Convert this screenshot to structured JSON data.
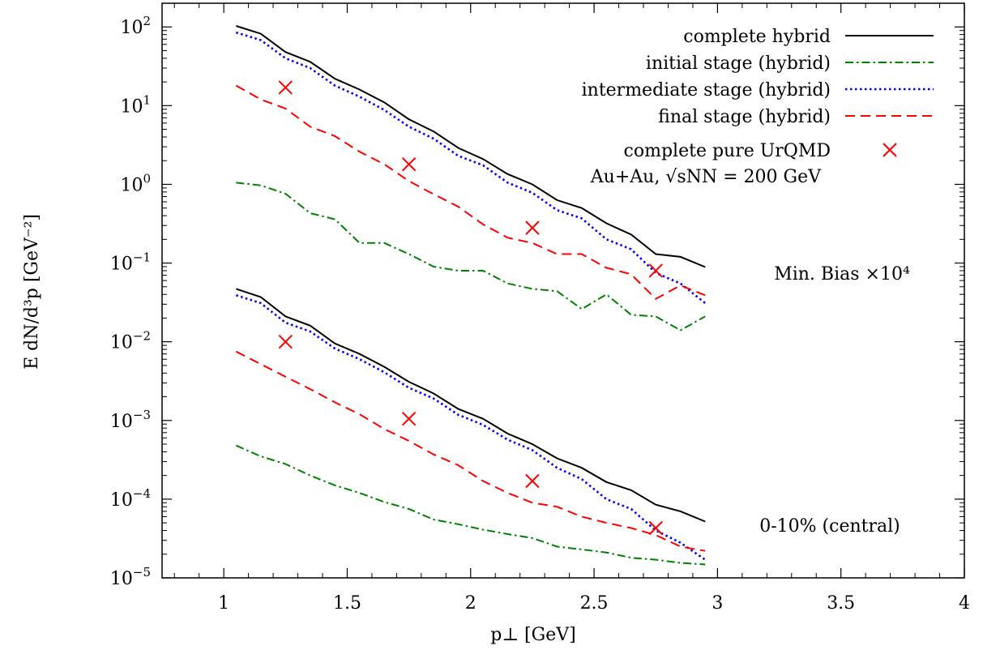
{
  "chart_data": {
    "type": "line",
    "xlabel": "p⊥ [GeV]",
    "ylabel": "E dN/d³p [GeV⁻²]",
    "xlim": [
      0.75,
      4.0
    ],
    "ylim": [
      1e-05,
      200
    ],
    "yscale": "log",
    "grid": false,
    "legend_position": "top-right",
    "x_ticks": [
      1,
      1.5,
      2,
      2.5,
      3,
      3.5,
      4
    ],
    "x_tick_labels": [
      "1",
      "1.5",
      "2",
      "2.5",
      "3",
      "3.5",
      "4"
    ],
    "y_ticks": [
      {
        "base": "10",
        "exp": "2",
        "value": 100
      },
      {
        "base": "10",
        "exp": "1",
        "value": 10
      },
      {
        "base": "10",
        "exp": "0",
        "value": 1
      },
      {
        "base": "10",
        "exp": "−1",
        "value": 0.1
      },
      {
        "base": "10",
        "exp": "−2",
        "value": 0.01
      },
      {
        "base": "10",
        "exp": "−3",
        "value": 0.001
      },
      {
        "base": "10",
        "exp": "−4",
        "value": 0.0001
      },
      {
        "base": "10",
        "exp": "−5",
        "value": 1e-05
      }
    ],
    "legend": [
      {
        "label": "complete hybrid",
        "color": "#000000",
        "style": "solid"
      },
      {
        "label": "initial stage (hybrid)",
        "color": "#008000",
        "style": "dashdot"
      },
      {
        "label": "intermediate stage (hybrid)",
        "color": "#0000ff",
        "style": "dotted"
      },
      {
        "label": "final stage (hybrid)",
        "color": "#ff0000",
        "style": "dashed"
      },
      {
        "label": "complete pure UrQMD",
        "color": "#ff0000",
        "style": "cross"
      }
    ],
    "system_label": "Au+Au, √sNN = 200 GeV",
    "annotations": [
      "Min. Bias ×10⁴",
      "0-10% (central)"
    ],
    "x": [
      1.05,
      1.15,
      1.25,
      1.35,
      1.45,
      1.55,
      1.65,
      1.75,
      1.85,
      1.95,
      2.05,
      2.15,
      2.25,
      2.35,
      2.45,
      2.55,
      2.65,
      2.75,
      2.85,
      2.95
    ],
    "series": [
      {
        "name": "complete hybrid",
        "group": "Min. Bias ×10⁴",
        "color": "#000000",
        "style": "solid",
        "values": [
          103,
          82,
          48,
          36,
          22,
          16,
          11,
          6.7,
          4.7,
          2.9,
          2.1,
          1.35,
          1.0,
          0.63,
          0.5,
          0.32,
          0.23,
          0.13,
          0.12,
          0.089
        ]
      },
      {
        "name": "initial stage (hybrid)",
        "group": "Min. Bias ×10⁴",
        "color": "#008000",
        "style": "dashdot",
        "values": [
          1.05,
          0.97,
          0.76,
          0.43,
          0.36,
          0.18,
          0.18,
          0.13,
          0.09,
          0.08,
          0.08,
          0.055,
          0.047,
          0.044,
          0.026,
          0.04,
          0.022,
          0.021,
          0.014,
          0.021
        ]
      },
      {
        "name": "intermediate stage (hybrid)",
        "group": "Min. Bias ×10⁴",
        "color": "#0000ff",
        "style": "dotted",
        "values": [
          85,
          68,
          40,
          30,
          18,
          13,
          8.8,
          5.4,
          3.8,
          2.3,
          1.75,
          1.05,
          0.78,
          0.47,
          0.37,
          0.2,
          0.15,
          0.075,
          0.055,
          0.031
        ]
      },
      {
        "name": "final stage (hybrid)",
        "group": "Min. Bias ×10⁴",
        "color": "#ff0000",
        "style": "dashed",
        "values": [
          18,
          12,
          9.2,
          5.4,
          4.1,
          2.6,
          1.8,
          1.1,
          0.75,
          0.52,
          0.31,
          0.21,
          0.18,
          0.13,
          0.13,
          0.087,
          0.072,
          0.035,
          0.052,
          0.039
        ]
      },
      {
        "name": "complete hybrid",
        "group": "0-10% (central)",
        "color": "#000000",
        "style": "solid",
        "values": [
          0.047,
          0.037,
          0.021,
          0.016,
          0.0095,
          0.007,
          0.0048,
          0.0031,
          0.0022,
          0.0014,
          0.00105,
          0.00068,
          0.0005,
          0.00033,
          0.00025,
          0.000165,
          0.00013,
          8.5e-05,
          7e-05,
          5.2e-05
        ]
      },
      {
        "name": "initial stage (hybrid)",
        "group": "0-10% (central)",
        "color": "#008000",
        "style": "dashdot",
        "values": [
          0.00048,
          0.00035,
          0.00028,
          0.0002,
          0.00015,
          0.00012,
          9.2e-05,
          7.5e-05,
          5.5e-05,
          4.8e-05,
          4.1e-05,
          3.6e-05,
          3.2e-05,
          2.5e-05,
          2.3e-05,
          2.1e-05,
          1.8e-05,
          1.7e-05,
          1.55e-05,
          1.48e-05
        ]
      },
      {
        "name": "intermediate stage (hybrid)",
        "group": "0-10% (central)",
        "color": "#0000ff",
        "style": "dotted",
        "values": [
          0.039,
          0.031,
          0.0175,
          0.0135,
          0.0082,
          0.006,
          0.0041,
          0.0026,
          0.0019,
          0.00118,
          0.00088,
          0.00057,
          0.00042,
          0.00025,
          0.00018,
          0.0001,
          7.5e-05,
          4e-05,
          2.8e-05,
          1.7e-05
        ]
      },
      {
        "name": "final stage (hybrid)",
        "group": "0-10% (central)",
        "color": "#ff0000",
        "style": "dashed",
        "values": [
          0.0075,
          0.0052,
          0.0036,
          0.0025,
          0.0017,
          0.0012,
          0.00078,
          0.00055,
          0.00037,
          0.00027,
          0.00017,
          0.00012,
          9e-05,
          8e-05,
          6e-05,
          5e-05,
          4.3e-05,
          3.5e-05,
          2.5e-05,
          2.2e-05
        ]
      }
    ],
    "scatter": [
      {
        "name": "complete pure UrQMD",
        "group": "Min. Bias ×10⁴",
        "color": "#ff0000",
        "marker": "x",
        "x": [
          1.25,
          1.75,
          2.25,
          2.75
        ],
        "y": [
          17,
          1.8,
          0.28,
          0.08
        ]
      },
      {
        "name": "complete pure UrQMD",
        "group": "0-10% (central)",
        "color": "#ff0000",
        "marker": "x",
        "x": [
          1.25,
          1.75,
          2.25,
          2.75
        ],
        "y": [
          0.01,
          0.00105,
          0.00017,
          4.3e-05
        ]
      }
    ]
  }
}
